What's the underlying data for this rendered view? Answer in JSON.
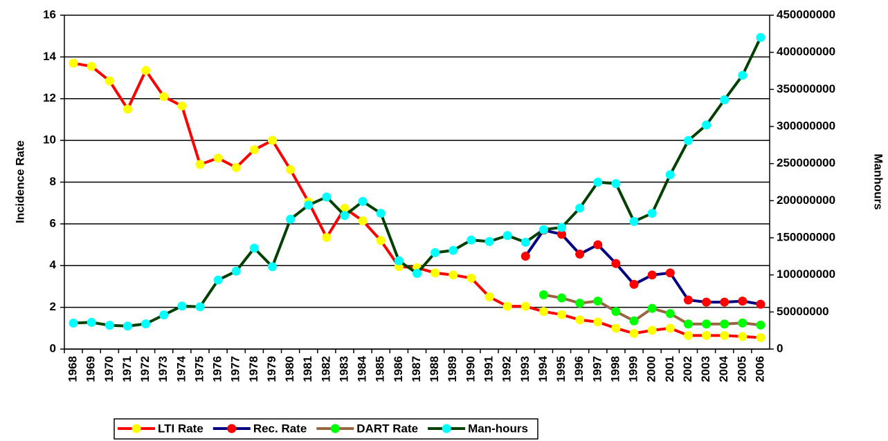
{
  "chart_data": {
    "type": "line",
    "y_label": "Incidence Rate",
    "y2_label": "Manhours",
    "categories": [
      "1968",
      "1969",
      "1970",
      "1971",
      "1972",
      "1973",
      "1974",
      "1975",
      "1976",
      "1977",
      "1978",
      "1979",
      "1980",
      "1981",
      "1982",
      "1983",
      "1984",
      "1985",
      "1986",
      "1987",
      "1988",
      "1989",
      "1990",
      "1991",
      "1992",
      "1993",
      "1994",
      "1995",
      "1996",
      "1997",
      "1998",
      "1999",
      "2000",
      "2001",
      "2002",
      "2003",
      "2004",
      "2005",
      "2006"
    ],
    "series": [
      {
        "name": "LTI Rate",
        "color": "#ff0000",
        "marker_color": "#ffff00",
        "values": [
          13.7,
          13.55,
          12.85,
          11.5,
          13.35,
          12.1,
          11.65,
          8.85,
          9.15,
          8.7,
          9.55,
          10.0,
          8.6,
          7.05,
          5.35,
          6.75,
          6.15,
          5.2,
          3.95,
          3.9,
          3.65,
          3.55,
          3.4,
          2.5,
          2.05,
          2.05,
          1.8,
          1.65,
          1.4,
          1.3,
          1.0,
          0.75,
          0.9,
          1.0,
          0.65,
          0.65,
          0.65,
          0.6,
          0.55
        ]
      },
      {
        "name": "Rec. Rate",
        "color": "#000080",
        "marker_color": "#ff0000",
        "values": [
          null,
          null,
          null,
          null,
          null,
          null,
          null,
          null,
          null,
          null,
          null,
          null,
          null,
          null,
          null,
          null,
          null,
          null,
          null,
          null,
          null,
          null,
          null,
          null,
          null,
          4.45,
          5.7,
          5.5,
          4.55,
          5.0,
          4.1,
          3.1,
          3.55,
          3.65,
          2.35,
          2.25,
          2.25,
          2.3,
          2.15
        ]
      },
      {
        "name": "DART Rate",
        "color": "#996644",
        "marker_color": "#00ff00",
        "values": [
          null,
          null,
          null,
          null,
          null,
          null,
          null,
          null,
          null,
          null,
          null,
          null,
          null,
          null,
          null,
          null,
          null,
          null,
          null,
          null,
          null,
          null,
          null,
          null,
          null,
          null,
          2.6,
          2.45,
          2.2,
          2.3,
          1.8,
          1.35,
          1.95,
          1.7,
          1.2,
          1.2,
          1.2,
          1.25,
          1.15
        ]
      },
      {
        "name": "Man-hours",
        "color": "#004000",
        "marker_color": "#00ffff",
        "axis": "y2",
        "values": [
          35000000,
          36000000,
          32000000,
          31000000,
          34000000,
          46000000,
          58000000,
          57000000,
          93000000,
          105000000,
          136000000,
          111000000,
          175000000,
          194000000,
          205000000,
          180000000,
          199000000,
          183000000,
          119000000,
          102000000,
          130000000,
          133000000,
          147000000,
          145000000,
          153000000,
          144000000,
          161000000,
          164000000,
          190000000,
          225000000,
          223000000,
          172000000,
          183000000,
          235000000,
          281000000,
          302000000,
          336000000,
          369000000,
          420000000
        ]
      }
    ],
    "ylim": [
      0,
      16
    ],
    "yticks": [
      0,
      2,
      4,
      6,
      8,
      10,
      12,
      14,
      16
    ],
    "y2lim": [
      0,
      450000000
    ],
    "y2ticks": [
      0,
      50000000,
      100000000,
      150000000,
      200000000,
      250000000,
      300000000,
      350000000,
      400000000,
      450000000
    ],
    "grid": true,
    "legend": "bottom"
  }
}
